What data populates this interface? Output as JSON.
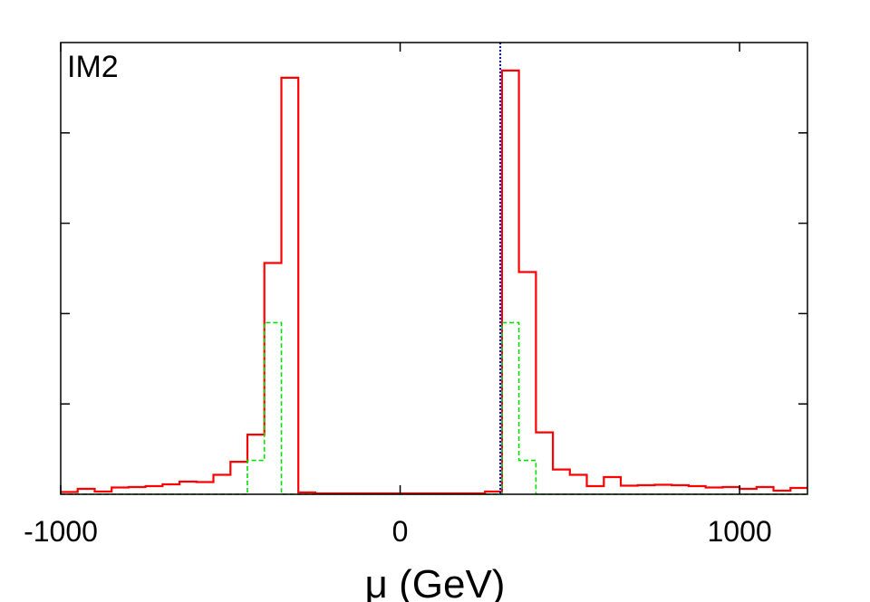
{
  "chart_data": {
    "type": "line",
    "title": "",
    "panel_label": "IM2",
    "xlabel": "μ (GeV)",
    "ylabel": "",
    "xlim": [
      -1000,
      1200
    ],
    "ylim": [
      0,
      100
    ],
    "x_ticks": [
      -1000,
      0,
      1000
    ],
    "x_tick_labels": [
      "-1000",
      "0",
      "1000"
    ],
    "y_ticks": [
      20,
      40,
      60,
      80
    ],
    "grid": false,
    "vline": {
      "x": 295,
      "color": "#0000ff",
      "style": "dotted"
    },
    "series": [
      {
        "color": "#ff0000",
        "style": "solid",
        "edges": [
          -1000,
          -950,
          -900,
          -850,
          -800,
          -750,
          -700,
          -650,
          -600,
          -550,
          -500,
          -450,
          -400,
          -350,
          -300,
          -250,
          -200,
          -150,
          -100,
          -50,
          0,
          50,
          100,
          150,
          200,
          250,
          300,
          350,
          400,
          450,
          500,
          550,
          600,
          650,
          700,
          750,
          800,
          850,
          900,
          950,
          1000,
          1050,
          1100,
          1150,
          1200
        ],
        "values": [
          0.5,
          1.2,
          0.6,
          1.5,
          1.6,
          1.8,
          2.2,
          2.8,
          2.7,
          4.3,
          7.2,
          13.2,
          51.2,
          92.2,
          0.4,
          0.2,
          0.2,
          0.2,
          0.2,
          0.2,
          0.2,
          0.2,
          0.2,
          0.2,
          0.2,
          0.6,
          93.8,
          49.2,
          13.7,
          5.5,
          4.3,
          1.8,
          3.8,
          1.9,
          2.0,
          2.1,
          2.0,
          1.8,
          1.5,
          1.6,
          1.2,
          1.6,
          0.8,
          1.4
        ]
      },
      {
        "color": "#00dd00",
        "style": "dashed",
        "edges": [
          -1000,
          -950,
          -900,
          -850,
          -800,
          -750,
          -700,
          -650,
          -600,
          -550,
          -500,
          -450,
          -400,
          -350,
          -300,
          -250,
          -200,
          -150,
          -100,
          -50,
          0,
          50,
          100,
          150,
          200,
          250,
          300,
          350,
          400,
          450,
          500,
          550,
          600,
          650,
          700,
          750,
          800,
          850,
          900,
          950,
          1000,
          1050,
          1100,
          1150,
          1200
        ],
        "values": [
          0,
          0,
          0,
          0,
          0,
          0,
          0,
          0,
          0,
          0,
          0,
          7.5,
          38,
          0,
          0,
          0,
          0,
          0,
          0,
          0,
          0,
          0,
          0,
          0,
          0,
          0,
          38,
          7.5,
          0,
          0,
          0,
          0,
          0,
          0,
          0,
          0,
          0,
          0,
          0,
          0,
          0,
          0,
          0,
          0
        ]
      }
    ]
  }
}
